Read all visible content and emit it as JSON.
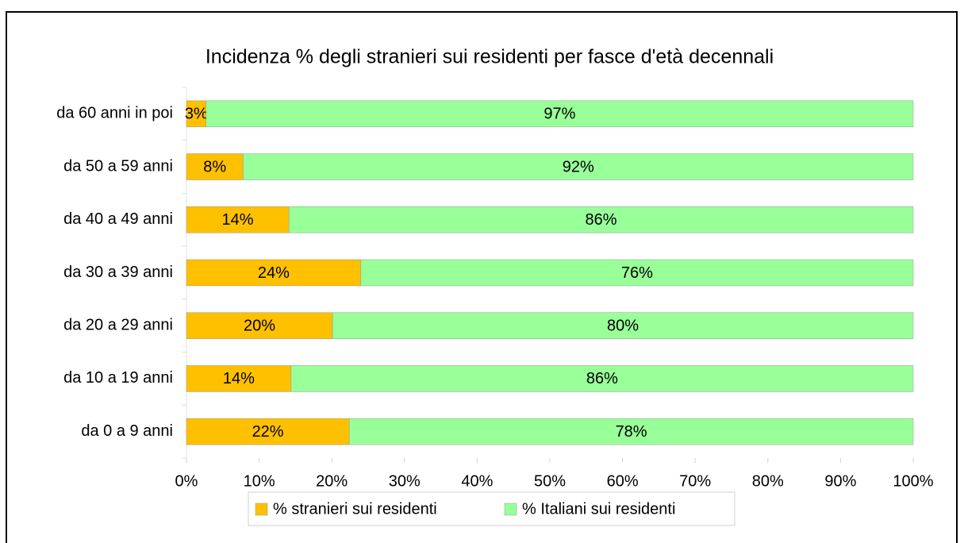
{
  "chart_data": {
    "type": "stacked-bar-horizontal",
    "title": "Incidenza % degli stranieri sui residenti  per fasce d'età decennali",
    "categories": [
      "da 0 a 9 anni",
      "da 10 a 19 anni",
      "da 20 a 29 anni",
      "da 30 a 39 anni",
      "da 40 a 49 anni",
      "da 50 a 59 anni",
      "da 60 anni in poi"
    ],
    "series": [
      {
        "name": "% stranieri sui residenti",
        "color": "#ffc000",
        "values": [
          22.4,
          14.4,
          20.1,
          24.0,
          14.1,
          7.8,
          2.7
        ],
        "value_labels": [
          "22%",
          "14%",
          "20%",
          "24%",
          "14%",
          "8%",
          "3%"
        ]
      },
      {
        "name": "% Italiani sui residenti",
        "color": "#99ff99",
        "values": [
          77.6,
          85.6,
          79.9,
          76.0,
          85.9,
          92.2,
          97.3
        ],
        "value_labels": [
          "78%",
          "86%",
          "80%",
          "76%",
          "86%",
          "92%",
          "97%"
        ]
      }
    ],
    "xlim": [
      0,
      100
    ],
    "xticks": [
      {
        "value": 0,
        "label": "0%"
      },
      {
        "value": 10,
        "label": "10%"
      },
      {
        "value": 20,
        "label": "20%"
      },
      {
        "value": 30,
        "label": "30%"
      },
      {
        "value": 40,
        "label": "40%"
      },
      {
        "value": 50,
        "label": "50%"
      },
      {
        "value": 60,
        "label": "60%"
      },
      {
        "value": 70,
        "label": "70%"
      },
      {
        "value": 80,
        "label": "80%"
      },
      {
        "value": 90,
        "label": "90%"
      },
      {
        "value": 100,
        "label": "100%"
      }
    ],
    "legend": "bottom"
  }
}
